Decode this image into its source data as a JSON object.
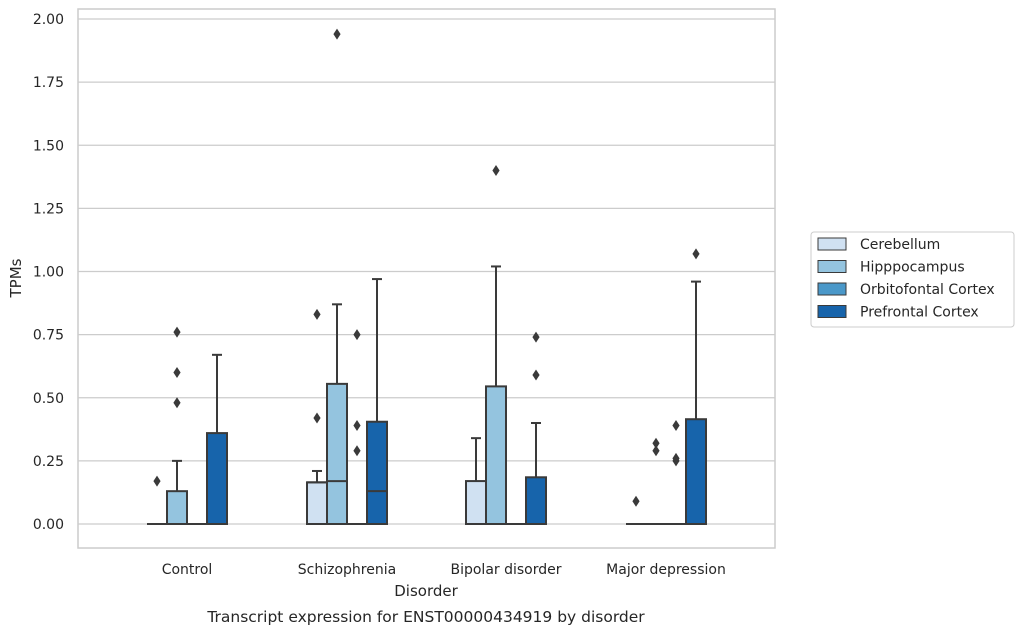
{
  "chart_data": {
    "type": "box",
    "title": "",
    "caption": "Transcript expression for ENST00000434919 by disorder",
    "xlabel": "Disorder",
    "ylabel": "TPMs",
    "ylim": [
      -0.095,
      2.03
    ],
    "yticks": [
      "0.00",
      "0.25",
      "0.50",
      "0.75",
      "1.00",
      "1.25",
      "1.50",
      "1.75",
      "2.00"
    ],
    "ytick_values": [
      0,
      0.25,
      0.5,
      0.75,
      1.0,
      1.25,
      1.5,
      1.75,
      2.0
    ],
    "grid": true,
    "legend_position": "right",
    "categories": [
      "Control",
      "Schizophrenia",
      "Bipolar disorder",
      "Major depression"
    ],
    "series": [
      {
        "name": "Cerebellum",
        "color": "#d0e1f2",
        "boxes": [
          {
            "q1": 0,
            "median": 0,
            "q3": 0,
            "whisker_low": 0,
            "whisker_high": 0,
            "outliers": [
              0.17
            ]
          },
          {
            "q1": 0,
            "median": 0.165,
            "q3": 0.165,
            "whisker_low": 0,
            "whisker_high": 0.21,
            "outliers": [
              0.42,
              0.83
            ]
          },
          {
            "q1": 0,
            "median": 0,
            "q3": 0.17,
            "whisker_low": 0,
            "whisker_high": 0.34,
            "outliers": []
          },
          {
            "q1": 0,
            "median": 0,
            "q3": 0,
            "whisker_low": 0,
            "whisker_high": 0,
            "outliers": [
              0.09
            ]
          }
        ]
      },
      {
        "name": "Hipppocampus",
        "color": "#94c4df",
        "boxes": [
          {
            "q1": 0,
            "median": 0,
            "q3": 0.13,
            "whisker_low": 0,
            "whisker_high": 0.25,
            "outliers": [
              0.48,
              0.6,
              0.76
            ]
          },
          {
            "q1": 0,
            "median": 0.17,
            "q3": 0.555,
            "whisker_low": 0,
            "whisker_high": 0.87,
            "outliers": [
              1.94
            ]
          },
          {
            "q1": 0,
            "median": 0,
            "q3": 0.545,
            "whisker_low": 0,
            "whisker_high": 1.02,
            "outliers": [
              1.4
            ]
          },
          {
            "q1": 0,
            "median": 0,
            "q3": 0,
            "whisker_low": 0,
            "whisker_high": 0,
            "outliers": [
              0.29,
              0.32
            ]
          }
        ]
      },
      {
        "name": "Orbitofontal Cortex",
        "color": "#4a98c9",
        "boxes": [
          {
            "q1": 0,
            "median": 0,
            "q3": 0,
            "whisker_low": 0,
            "whisker_high": 0,
            "outliers": []
          },
          {
            "q1": 0,
            "median": 0,
            "q3": 0,
            "whisker_low": 0,
            "whisker_high": 0,
            "outliers": [
              0.29,
              0.39,
              0.75
            ]
          },
          {
            "q1": 0,
            "median": 0,
            "q3": 0,
            "whisker_low": 0,
            "whisker_high": 0,
            "outliers": []
          },
          {
            "q1": 0,
            "median": 0,
            "q3": 0,
            "whisker_low": 0,
            "whisker_high": 0,
            "outliers": [
              0.25,
              0.26,
              0.39
            ]
          }
        ]
      },
      {
        "name": "Prefrontal Cortex",
        "color": "#1764ab",
        "boxes": [
          {
            "q1": 0,
            "median": 0,
            "q3": 0.36,
            "whisker_low": 0,
            "whisker_high": 0.67,
            "outliers": []
          },
          {
            "q1": 0,
            "median": 0.13,
            "q3": 0.405,
            "whisker_low": 0,
            "whisker_high": 0.97,
            "outliers": []
          },
          {
            "q1": 0,
            "median": 0,
            "q3": 0.185,
            "whisker_low": 0,
            "whisker_high": 0.4,
            "outliers": [
              0.59,
              0.74
            ]
          },
          {
            "q1": 0,
            "median": 0,
            "q3": 0.415,
            "whisker_low": 0,
            "whisker_high": 0.96,
            "outliers": [
              1.07
            ]
          }
        ]
      }
    ]
  }
}
